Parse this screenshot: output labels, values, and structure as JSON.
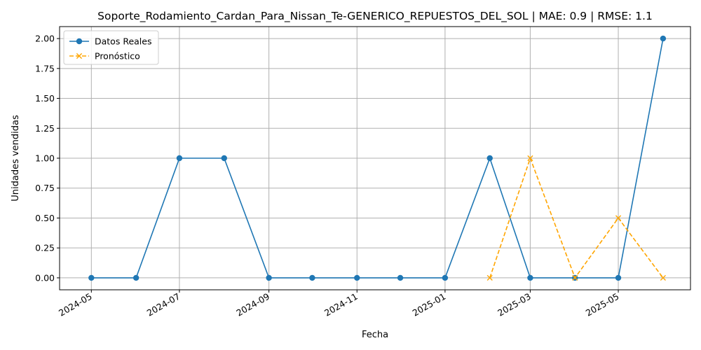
{
  "chart_data": {
    "type": "line",
    "title": "Soporte_Rodamiento_Cardan_Para_Nissan_Te-GENERICO_REPUESTOS_DEL_SOL | MAE: 0.9 | RMSE: 1.1",
    "xlabel": "Fecha",
    "ylabel": "Unidades vendidas",
    "xlim": [
      "2024-04-09",
      "2025-06-20"
    ],
    "ylim": [
      -0.1,
      2.1
    ],
    "x_ticks": [
      "2024-05",
      "2024-07",
      "2024-09",
      "2024-11",
      "2025-01",
      "2025-03",
      "2025-05"
    ],
    "y_ticks": [
      "0.00",
      "0.25",
      "0.50",
      "0.75",
      "1.00",
      "1.25",
      "1.50",
      "1.75",
      "2.00"
    ],
    "grid": true,
    "legend_position": "upper-left",
    "series": [
      {
        "name": "Datos Reales",
        "color": "#1f77b4",
        "marker": "circle",
        "line_style": "solid",
        "x": [
          "2024-05-01",
          "2024-06-01",
          "2024-07-01",
          "2024-08-01",
          "2024-09-01",
          "2024-10-01",
          "2024-11-01",
          "2024-12-01",
          "2025-01-01",
          "2025-02-01",
          "2025-03-01",
          "2025-04-01",
          "2025-05-01",
          "2025-06-01"
        ],
        "values": [
          0,
          0,
          1,
          1,
          0,
          0,
          0,
          0,
          0,
          1,
          0,
          0,
          0,
          2
        ]
      },
      {
        "name": "Pronóstico",
        "color": "#ffa500",
        "marker": "x",
        "line_style": "dashed",
        "x": [
          "2025-02-01",
          "2025-03-01",
          "2025-04-01",
          "2025-05-01",
          "2025-06-01"
        ],
        "values": [
          0,
          1,
          0,
          0.5,
          0
        ]
      }
    ]
  }
}
